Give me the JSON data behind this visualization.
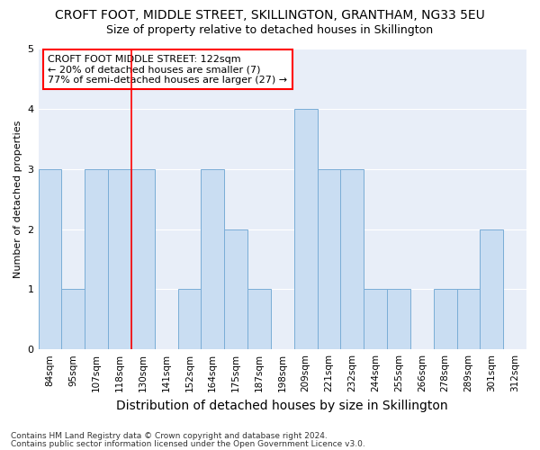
{
  "title": "CROFT FOOT, MIDDLE STREET, SKILLINGTON, GRANTHAM, NG33 5EU",
  "subtitle": "Size of property relative to detached houses in Skillington",
  "xlabel": "Distribution of detached houses by size in Skillington",
  "ylabel": "Number of detached properties",
  "footnote1": "Contains HM Land Registry data © Crown copyright and database right 2024.",
  "footnote2": "Contains public sector information licensed under the Open Government Licence v3.0.",
  "categories": [
    "84sqm",
    "95sqm",
    "107sqm",
    "118sqm",
    "130sqm",
    "141sqm",
    "152sqm",
    "164sqm",
    "175sqm",
    "187sqm",
    "198sqm",
    "209sqm",
    "221sqm",
    "232sqm",
    "244sqm",
    "255sqm",
    "266sqm",
    "278sqm",
    "289sqm",
    "301sqm",
    "312sqm"
  ],
  "values": [
    3,
    1,
    3,
    3,
    3,
    0,
    1,
    3,
    2,
    1,
    0,
    4,
    3,
    3,
    1,
    1,
    0,
    1,
    1,
    2,
    0
  ],
  "bar_color": "#c9ddf2",
  "bar_edge_color": "#7aadd6",
  "red_line_x": 3.5,
  "annotation_title": "CROFT FOOT MIDDLE STREET: 122sqm",
  "annotation_line1": "← 20% of detached houses are smaller (7)",
  "annotation_line2": "77% of semi-detached houses are larger (27) →",
  "ylim": [
    0,
    5
  ],
  "fig_bg_color": "#ffffff",
  "plot_bg_color": "#e8eef8",
  "grid_color": "#ffffff",
  "title_fontsize": 10,
  "subtitle_fontsize": 9,
  "xlabel_fontsize": 10,
  "ylabel_fontsize": 8,
  "tick_fontsize": 7.5,
  "annot_fontsize": 8,
  "footnote_fontsize": 6.5
}
